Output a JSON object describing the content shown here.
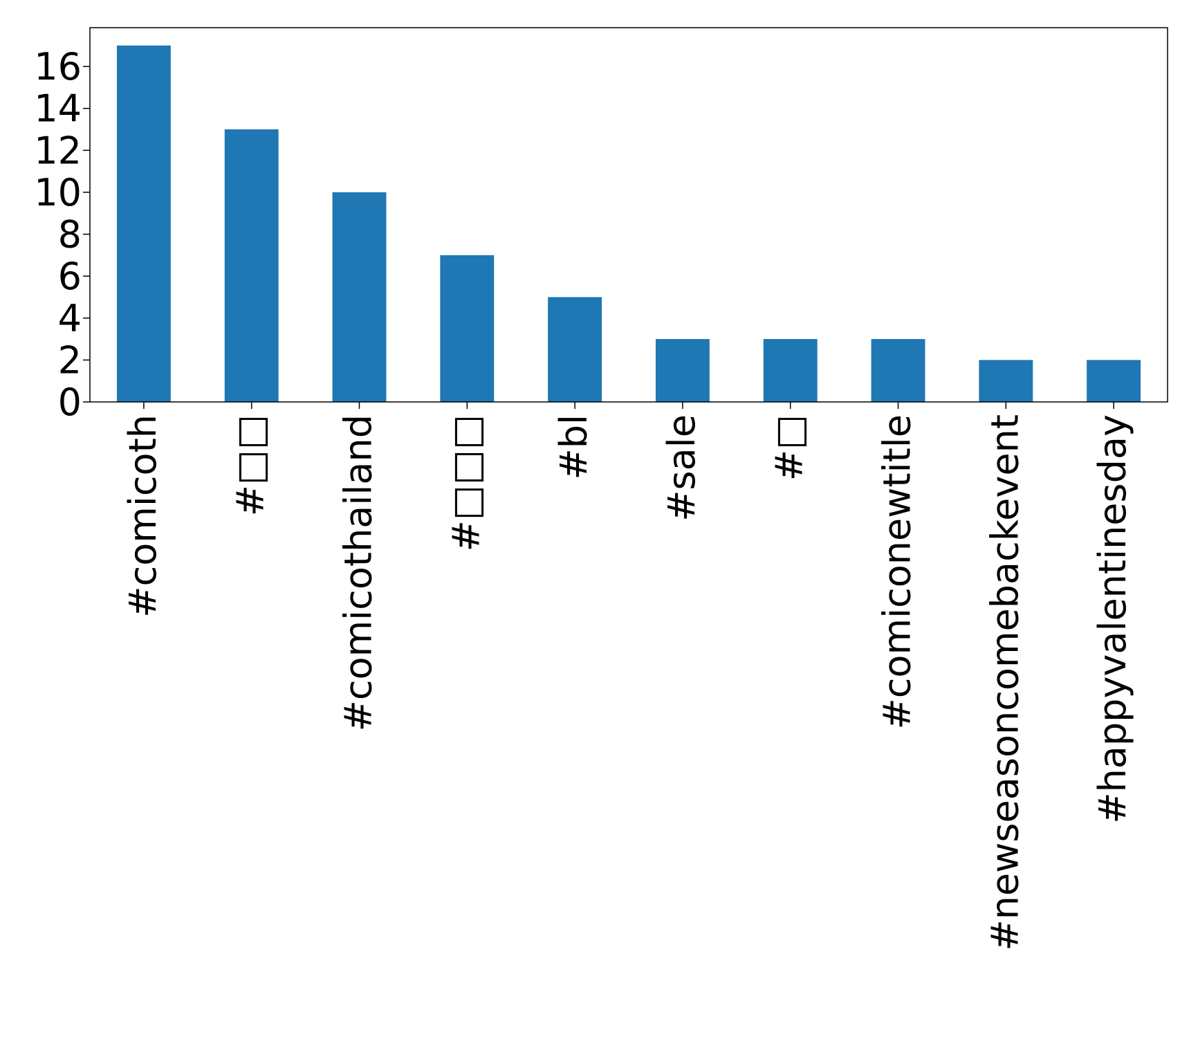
{
  "chart_data": {
    "type": "bar",
    "categories": [
      "#comicoth",
      "#□□",
      "#comicothailand",
      "#□□□",
      "#bl",
      "#sale",
      "#□",
      "#comiconewtitle",
      "#newseasoncomebackevent",
      "#happyvalentinesday"
    ],
    "values": [
      17,
      13,
      10,
      7,
      5,
      3,
      3,
      3,
      2,
      2
    ],
    "ylim": [
      0,
      17.85
    ],
    "yticks": [
      0,
      2,
      4,
      6,
      8,
      10,
      12,
      14,
      16
    ],
    "bar_color": "#1f77b4",
    "grid": false,
    "legend": "none"
  }
}
